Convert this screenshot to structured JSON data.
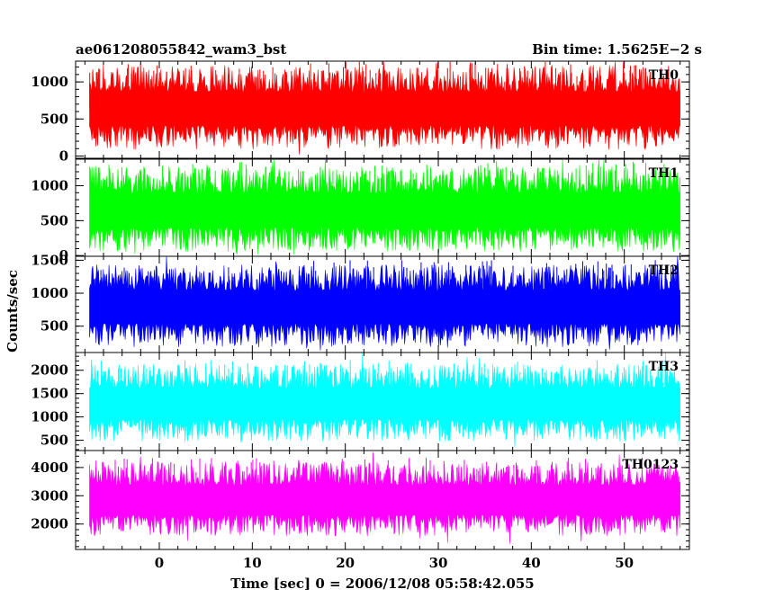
{
  "header": {
    "title": "ae061208055842_wam3_bst",
    "bin_time": "Bin time: 1.5625E−2 s"
  },
  "chart_data": {
    "type": "line",
    "title": "ae061208055842_wam3_bst",
    "subtitle": "Bin time: 1.5625E−2 s",
    "xlabel": "Time [sec] 0 = 2006/12/08 05:58:42.055",
    "ylabel": "Counts/sec",
    "xlim": [
      -9,
      57
    ],
    "x_ticks": [
      "0",
      "10",
      "20",
      "30",
      "40",
      "50"
    ],
    "x_tick_values": [
      0,
      10,
      20,
      30,
      40,
      50
    ],
    "data_x_range": [
      -7.5,
      56
    ],
    "grid": false,
    "panels": [
      {
        "name": "TH0",
        "color": "#ff0000",
        "ylim": [
          -30,
          1280
        ],
        "y_ticks": [
          "0",
          "500",
          "1000"
        ],
        "y_tick_values": [
          0,
          500,
          1000
        ],
        "y_minor_step": 100,
        "mean": 640,
        "spread": 650,
        "min": 20,
        "max": 1270
      },
      {
        "name": "TH1",
        "color": "#00ff00",
        "ylim": [
          -10,
          1380
        ],
        "y_ticks": [
          "0",
          "500",
          "1000"
        ],
        "y_tick_values": [
          0,
          500,
          1000
        ],
        "y_minor_step": 100,
        "mean": 650,
        "spread": 700,
        "min": 20,
        "max": 1380
      },
      {
        "name": "TH2",
        "color": "#0000ff",
        "ylim": [
          100,
          1560
        ],
        "y_ticks": [
          "500",
          "1000",
          "1500"
        ],
        "y_tick_values": [
          500,
          1000,
          1500
        ],
        "y_minor_step": 100,
        "mean": 790,
        "spread": 720,
        "min": 130,
        "max": 1560
      },
      {
        "name": "TH3",
        "color": "#00ffff",
        "ylim": [
          280,
          2380
        ],
        "y_ticks": [
          "500",
          "1000",
          "1500",
          "2000"
        ],
        "y_tick_values": [
          500,
          1000,
          1500,
          2000
        ],
        "y_minor_step": 100,
        "mean": 1280,
        "spread": 950,
        "min": 300,
        "max": 2380
      },
      {
        "name": "TH0123",
        "color": "#ff00ff",
        "ylim": [
          1100,
          4600
        ],
        "y_ticks": [
          "2000",
          "3000",
          "4000"
        ],
        "y_tick_values": [
          2000,
          3000,
          4000
        ],
        "y_minor_step": 200,
        "mean": 2850,
        "spread": 1500,
        "min": 1120,
        "max": 4550
      }
    ]
  }
}
